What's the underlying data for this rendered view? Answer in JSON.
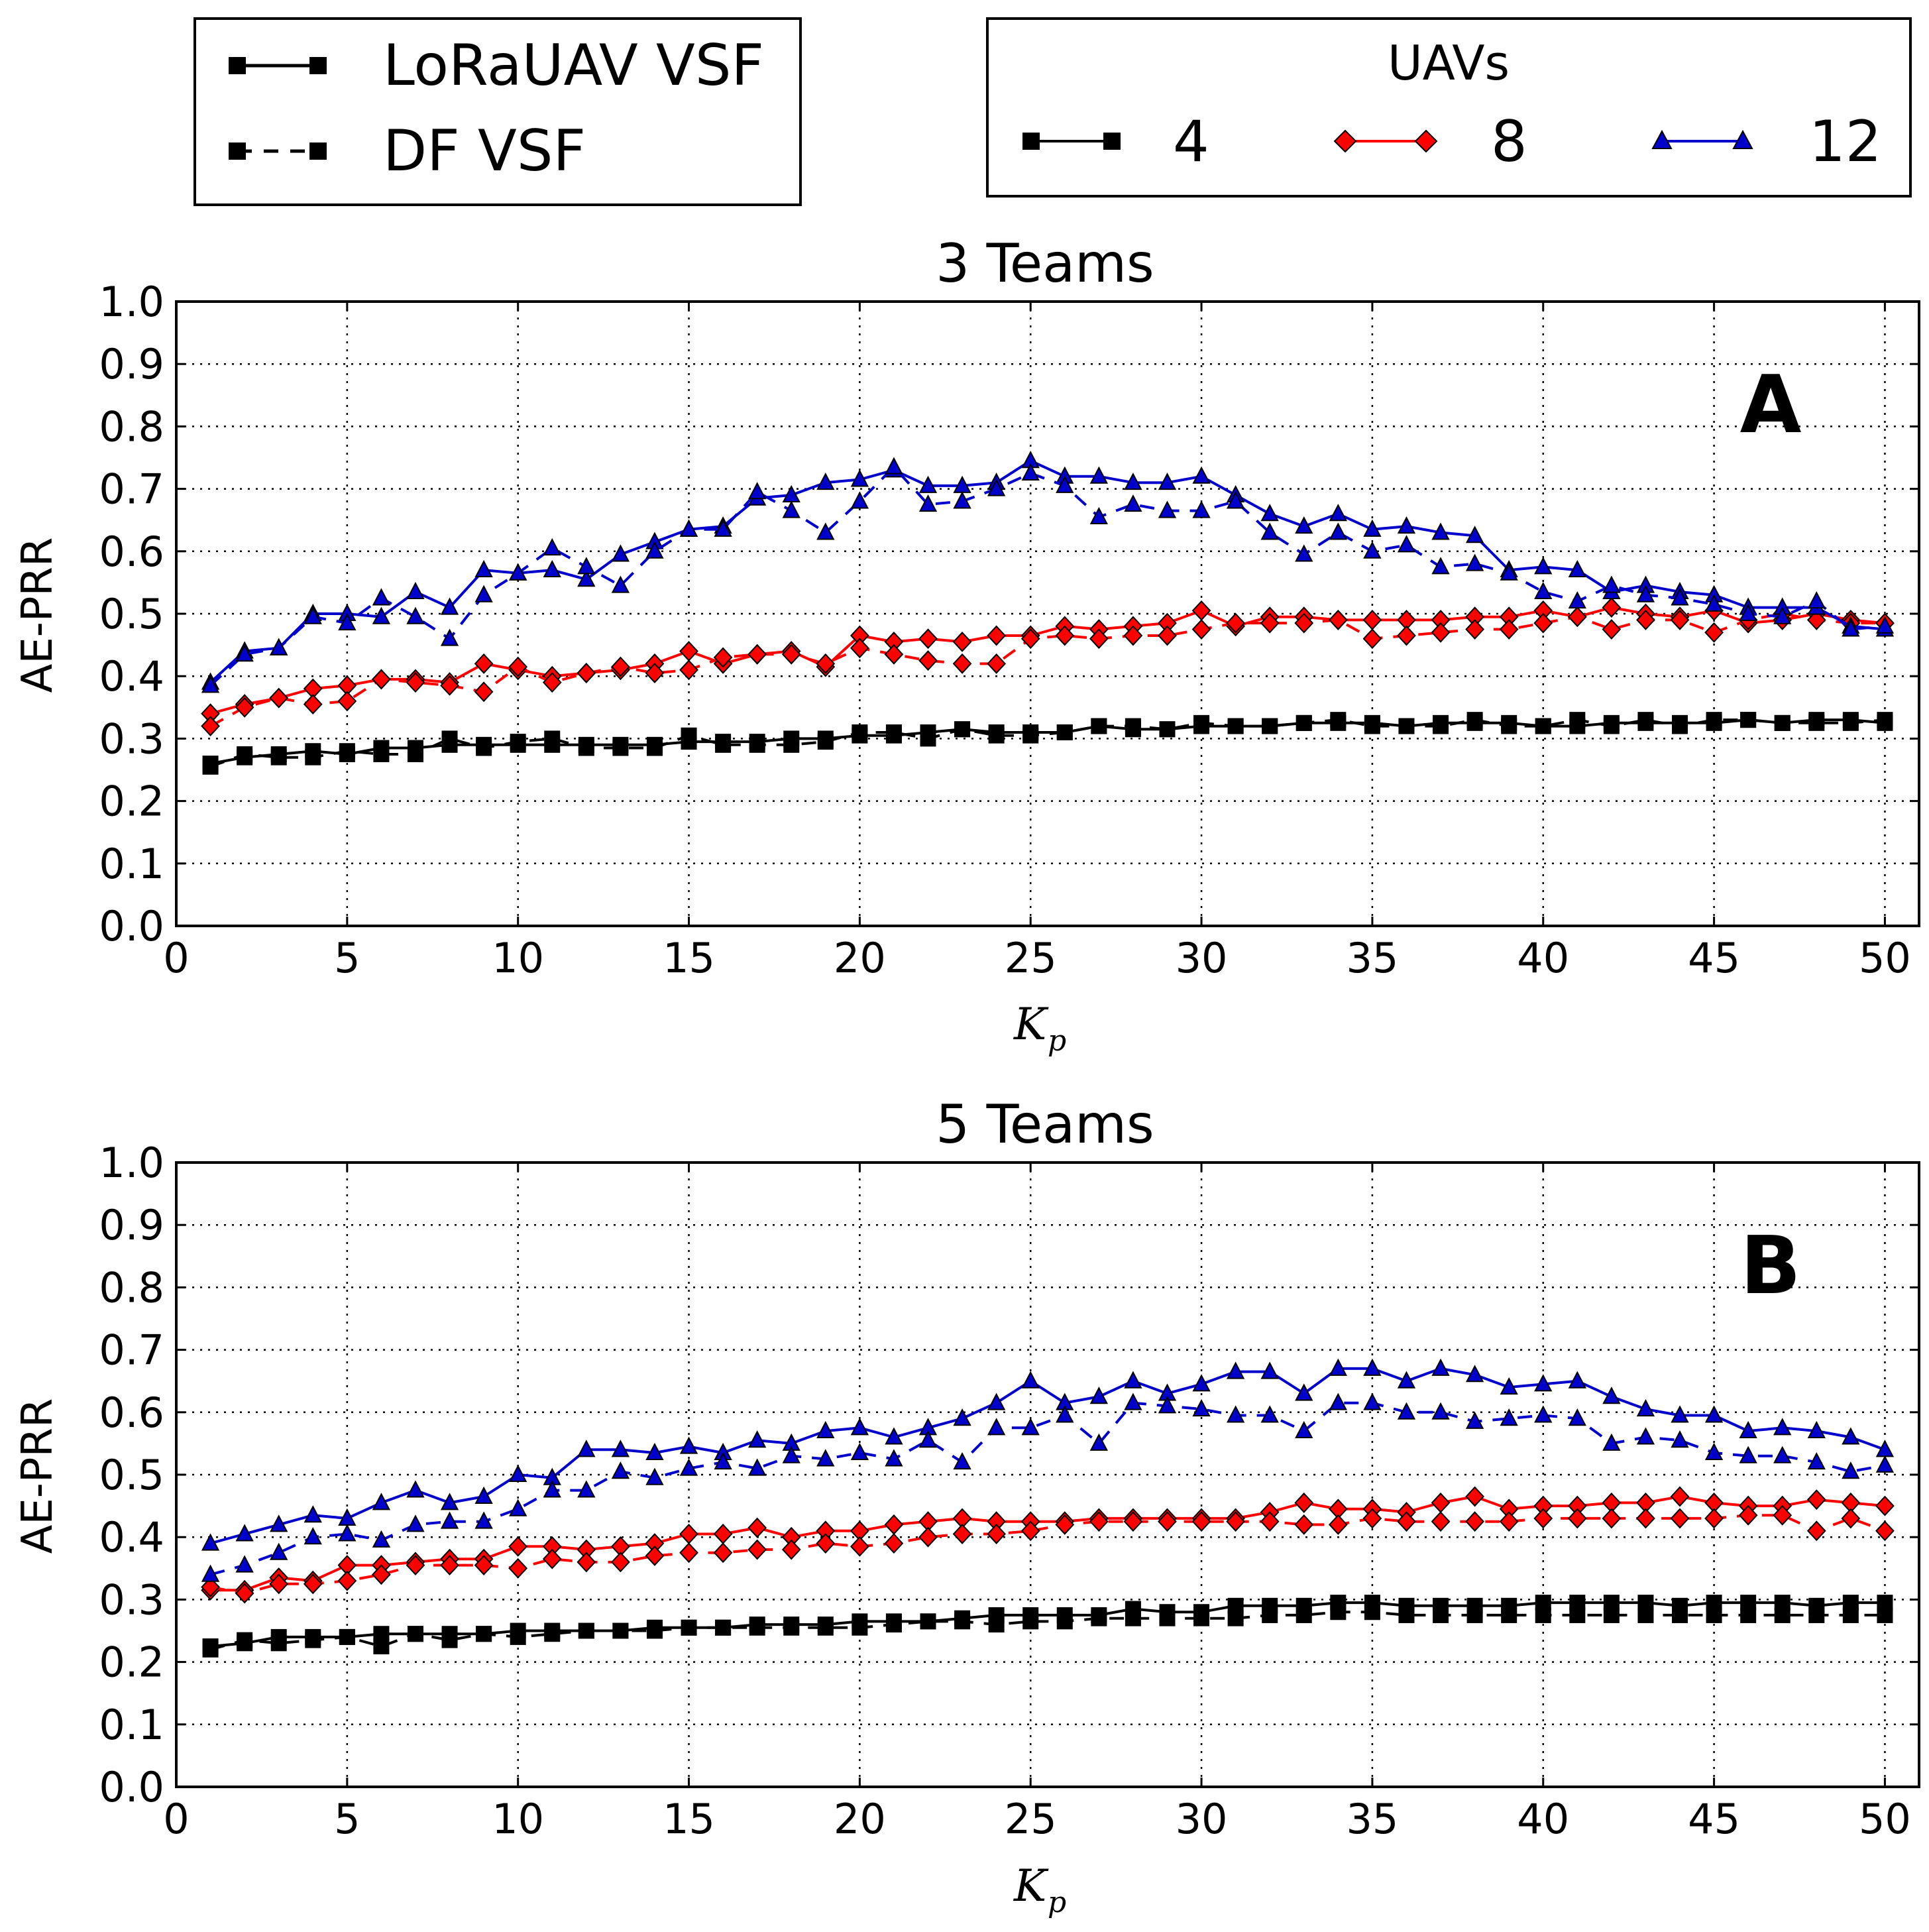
{
  "legend_style": {
    "entries": [
      {
        "label": "LoRaUAV VSF",
        "dash": "solid"
      },
      {
        "label": "DF VSF",
        "dash": "dashed"
      }
    ]
  },
  "legend_uavs": {
    "title": "UAVs",
    "entries": [
      {
        "label": "4",
        "color": "#000000",
        "marker": "square"
      },
      {
        "label": "8",
        "color": "#ff0000",
        "marker": "diamond"
      },
      {
        "label": "12",
        "color": "#0000cc",
        "marker": "triangle"
      }
    ]
  },
  "chart_data": [
    {
      "type": "line",
      "title": "3 Teams",
      "panel_label": "A",
      "xlabel": "K",
      "xlabel_subscript": "p",
      "ylabel": "AE-PRR",
      "xlim": [
        0,
        51
      ],
      "ylim": [
        0,
        1
      ],
      "xticks": [
        "0",
        "5",
        "10",
        "15",
        "20",
        "25",
        "30",
        "35",
        "40",
        "45",
        "50"
      ],
      "yticks": [
        "0.0",
        "0.1",
        "0.2",
        "0.3",
        "0.4",
        "0.5",
        "0.6",
        "0.7",
        "0.8",
        "0.9",
        "1.0"
      ],
      "grid": true,
      "x": [
        1,
        2,
        3,
        4,
        5,
        6,
        7,
        8,
        9,
        10,
        11,
        12,
        13,
        14,
        15,
        16,
        17,
        18,
        19,
        20,
        21,
        22,
        23,
        24,
        25,
        26,
        27,
        28,
        29,
        30,
        31,
        32,
        33,
        34,
        35,
        36,
        37,
        38,
        39,
        40,
        41,
        42,
        43,
        44,
        45,
        46,
        47,
        48,
        49,
        50
      ],
      "series": [
        {
          "name": "LoRaUAV VSF - 4 UAVs",
          "uavs": "4",
          "style": "solid",
          "values": [
            0.26,
            0.27,
            0.275,
            0.28,
            0.275,
            0.285,
            0.285,
            0.29,
            0.29,
            0.29,
            0.29,
            0.29,
            0.29,
            0.29,
            0.295,
            0.295,
            0.295,
            0.3,
            0.3,
            0.305,
            0.305,
            0.31,
            0.315,
            0.31,
            0.31,
            0.31,
            0.32,
            0.315,
            0.315,
            0.32,
            0.32,
            0.32,
            0.325,
            0.325,
            0.325,
            0.32,
            0.325,
            0.325,
            0.325,
            0.32,
            0.32,
            0.325,
            0.325,
            0.325,
            0.325,
            0.33,
            0.325,
            0.33,
            0.33,
            0.325
          ]
        },
        {
          "name": "DF VSF - 4 UAVs",
          "uavs": "4",
          "style": "dashed",
          "values": [
            0.255,
            0.275,
            0.27,
            0.27,
            0.28,
            0.275,
            0.275,
            0.3,
            0.285,
            0.295,
            0.3,
            0.285,
            0.285,
            0.285,
            0.305,
            0.29,
            0.29,
            0.29,
            0.295,
            0.31,
            0.31,
            0.3,
            0.315,
            0.305,
            0.305,
            0.31,
            0.32,
            0.32,
            0.315,
            0.325,
            0.32,
            0.32,
            0.325,
            0.33,
            0.32,
            0.32,
            0.32,
            0.33,
            0.32,
            0.32,
            0.33,
            0.32,
            0.33,
            0.32,
            0.33,
            0.33,
            0.325,
            0.325,
            0.325,
            0.33
          ]
        },
        {
          "name": "LoRaUAV VSF - 8 UAVs",
          "uavs": "8",
          "style": "solid",
          "values": [
            0.34,
            0.355,
            0.365,
            0.38,
            0.385,
            0.395,
            0.395,
            0.39,
            0.42,
            0.41,
            0.4,
            0.405,
            0.41,
            0.42,
            0.44,
            0.42,
            0.435,
            0.44,
            0.415,
            0.465,
            0.455,
            0.46,
            0.455,
            0.465,
            0.465,
            0.48,
            0.475,
            0.48,
            0.485,
            0.505,
            0.48,
            0.495,
            0.495,
            0.49,
            0.49,
            0.49,
            0.49,
            0.495,
            0.495,
            0.505,
            0.495,
            0.51,
            0.5,
            0.495,
            0.505,
            0.485,
            0.49,
            0.5,
            0.49,
            0.485
          ]
        },
        {
          "name": "DF VSF - 8 UAVs",
          "uavs": "8",
          "style": "dashed",
          "values": [
            0.32,
            0.35,
            0.365,
            0.355,
            0.36,
            0.395,
            0.39,
            0.385,
            0.375,
            0.415,
            0.39,
            0.405,
            0.415,
            0.405,
            0.41,
            0.43,
            0.435,
            0.435,
            0.42,
            0.445,
            0.435,
            0.425,
            0.42,
            0.42,
            0.46,
            0.465,
            0.46,
            0.465,
            0.465,
            0.475,
            0.485,
            0.485,
            0.485,
            0.49,
            0.46,
            0.465,
            0.47,
            0.475,
            0.475,
            0.485,
            0.495,
            0.475,
            0.49,
            0.49,
            0.47,
            0.49,
            0.5,
            0.49,
            0.485,
            0.485
          ]
        },
        {
          "name": "LoRaUAV VSF - 12 UAVs",
          "uavs": "12",
          "style": "solid",
          "values": [
            0.39,
            0.44,
            0.445,
            0.5,
            0.5,
            0.495,
            0.535,
            0.51,
            0.57,
            0.565,
            0.57,
            0.555,
            0.595,
            0.615,
            0.635,
            0.64,
            0.685,
            0.69,
            0.71,
            0.715,
            0.73,
            0.705,
            0.705,
            0.71,
            0.745,
            0.72,
            0.72,
            0.71,
            0.71,
            0.72,
            0.69,
            0.66,
            0.64,
            0.66,
            0.635,
            0.64,
            0.63,
            0.625,
            0.57,
            0.575,
            0.57,
            0.535,
            0.545,
            0.535,
            0.53,
            0.51,
            0.51,
            0.51,
            0.48,
            0.475
          ]
        },
        {
          "name": "DF VSF - 12 UAVs",
          "uavs": "12",
          "style": "dashed",
          "values": [
            0.385,
            0.435,
            0.445,
            0.495,
            0.485,
            0.525,
            0.495,
            0.46,
            0.53,
            0.565,
            0.605,
            0.575,
            0.545,
            0.6,
            0.635,
            0.635,
            0.695,
            0.665,
            0.63,
            0.68,
            0.735,
            0.675,
            0.68,
            0.7,
            0.725,
            0.705,
            0.655,
            0.675,
            0.665,
            0.665,
            0.68,
            0.63,
            0.595,
            0.63,
            0.6,
            0.61,
            0.575,
            0.58,
            0.565,
            0.535,
            0.52,
            0.545,
            0.53,
            0.525,
            0.515,
            0.5,
            0.495,
            0.52,
            0.475,
            0.48
          ]
        }
      ]
    },
    {
      "type": "line",
      "title": "5 Teams",
      "panel_label": "B",
      "xlabel": "K",
      "xlabel_subscript": "p",
      "ylabel": "AE-PRR",
      "xlim": [
        0,
        51
      ],
      "ylim": [
        0,
        1
      ],
      "xticks": [
        "0",
        "5",
        "10",
        "15",
        "20",
        "25",
        "30",
        "35",
        "40",
        "45",
        "50"
      ],
      "yticks": [
        "0.0",
        "0.1",
        "0.2",
        "0.3",
        "0.4",
        "0.5",
        "0.6",
        "0.7",
        "0.8",
        "0.9",
        "1.0"
      ],
      "grid": true,
      "x": [
        1,
        2,
        3,
        4,
        5,
        6,
        7,
        8,
        9,
        10,
        11,
        12,
        13,
        14,
        15,
        16,
        17,
        18,
        19,
        20,
        21,
        22,
        23,
        24,
        25,
        26,
        27,
        28,
        29,
        30,
        31,
        32,
        33,
        34,
        35,
        36,
        37,
        38,
        39,
        40,
        41,
        42,
        43,
        44,
        45,
        46,
        47,
        48,
        49,
        50
      ],
      "series": [
        {
          "name": "LoRaUAV VSF - 4 UAVs",
          "uavs": "4",
          "style": "solid",
          "values": [
            0.225,
            0.23,
            0.24,
            0.24,
            0.24,
            0.245,
            0.245,
            0.245,
            0.245,
            0.25,
            0.25,
            0.25,
            0.25,
            0.255,
            0.255,
            0.255,
            0.26,
            0.26,
            0.26,
            0.265,
            0.265,
            0.265,
            0.27,
            0.275,
            0.275,
            0.275,
            0.275,
            0.285,
            0.28,
            0.28,
            0.29,
            0.29,
            0.29,
            0.295,
            0.295,
            0.29,
            0.29,
            0.29,
            0.29,
            0.295,
            0.295,
            0.295,
            0.295,
            0.29,
            0.295,
            0.295,
            0.295,
            0.29,
            0.295,
            0.295
          ]
        },
        {
          "name": "DF VSF - 4 UAVs",
          "uavs": "4",
          "style": "dashed",
          "values": [
            0.22,
            0.235,
            0.23,
            0.235,
            0.24,
            0.225,
            0.245,
            0.235,
            0.245,
            0.24,
            0.245,
            0.25,
            0.25,
            0.25,
            0.255,
            0.255,
            0.255,
            0.255,
            0.255,
            0.255,
            0.26,
            0.265,
            0.265,
            0.26,
            0.265,
            0.265,
            0.27,
            0.27,
            0.27,
            0.27,
            0.27,
            0.275,
            0.275,
            0.28,
            0.28,
            0.275,
            0.275,
            0.275,
            0.275,
            0.275,
            0.275,
            0.275,
            0.275,
            0.275,
            0.275,
            0.275,
            0.275,
            0.275,
            0.275,
            0.275
          ]
        },
        {
          "name": "LoRaUAV VSF - 8 UAVs",
          "uavs": "8",
          "style": "solid",
          "values": [
            0.315,
            0.315,
            0.335,
            0.33,
            0.355,
            0.355,
            0.36,
            0.365,
            0.365,
            0.385,
            0.385,
            0.38,
            0.385,
            0.39,
            0.405,
            0.405,
            0.415,
            0.4,
            0.41,
            0.41,
            0.42,
            0.425,
            0.43,
            0.425,
            0.425,
            0.425,
            0.43,
            0.43,
            0.43,
            0.43,
            0.43,
            0.44,
            0.455,
            0.445,
            0.445,
            0.44,
            0.455,
            0.465,
            0.445,
            0.45,
            0.45,
            0.455,
            0.455,
            0.465,
            0.455,
            0.45,
            0.45,
            0.46,
            0.455,
            0.45
          ]
        },
        {
          "name": "DF VSF - 8 UAVs",
          "uavs": "8",
          "style": "dashed",
          "values": [
            0.32,
            0.31,
            0.325,
            0.325,
            0.33,
            0.34,
            0.355,
            0.355,
            0.355,
            0.35,
            0.365,
            0.36,
            0.36,
            0.37,
            0.375,
            0.375,
            0.38,
            0.38,
            0.39,
            0.385,
            0.39,
            0.4,
            0.405,
            0.405,
            0.41,
            0.42,
            0.425,
            0.425,
            0.425,
            0.425,
            0.425,
            0.425,
            0.42,
            0.42,
            0.43,
            0.425,
            0.425,
            0.425,
            0.425,
            0.43,
            0.43,
            0.43,
            0.43,
            0.43,
            0.43,
            0.435,
            0.435,
            0.41,
            0.43,
            0.41
          ]
        },
        {
          "name": "LoRaUAV VSF - 12 UAVs",
          "uavs": "12",
          "style": "solid",
          "values": [
            0.39,
            0.405,
            0.42,
            0.435,
            0.43,
            0.455,
            0.475,
            0.455,
            0.465,
            0.5,
            0.495,
            0.54,
            0.54,
            0.535,
            0.545,
            0.535,
            0.555,
            0.55,
            0.57,
            0.575,
            0.56,
            0.575,
            0.59,
            0.615,
            0.65,
            0.615,
            0.625,
            0.65,
            0.63,
            0.645,
            0.665,
            0.665,
            0.63,
            0.67,
            0.67,
            0.65,
            0.67,
            0.66,
            0.64,
            0.645,
            0.65,
            0.625,
            0.605,
            0.595,
            0.595,
            0.57,
            0.575,
            0.57,
            0.56,
            0.54
          ]
        },
        {
          "name": "DF VSF - 12 UAVs",
          "uavs": "12",
          "style": "dashed",
          "values": [
            0.34,
            0.355,
            0.375,
            0.4,
            0.405,
            0.395,
            0.42,
            0.425,
            0.425,
            0.445,
            0.475,
            0.475,
            0.505,
            0.495,
            0.51,
            0.52,
            0.51,
            0.53,
            0.525,
            0.535,
            0.525,
            0.555,
            0.52,
            0.575,
            0.575,
            0.595,
            0.55,
            0.615,
            0.61,
            0.605,
            0.595,
            0.595,
            0.57,
            0.615,
            0.615,
            0.6,
            0.6,
            0.585,
            0.59,
            0.595,
            0.59,
            0.55,
            0.56,
            0.555,
            0.535,
            0.53,
            0.53,
            0.52,
            0.505,
            0.515
          ]
        }
      ]
    }
  ]
}
